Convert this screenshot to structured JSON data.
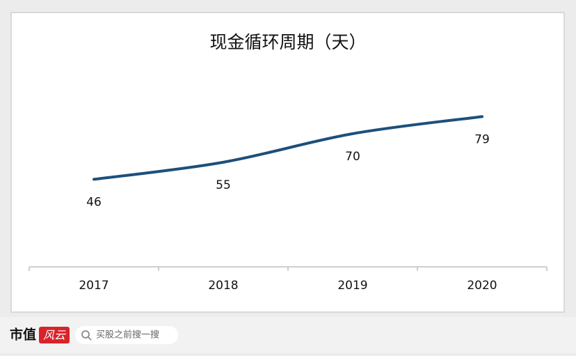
{
  "chart_data": {
    "type": "line",
    "title": "现金循环周期（天）",
    "categories": [
      "2017",
      "2018",
      "2019",
      "2020"
    ],
    "values": [
      46,
      55,
      70,
      79
    ],
    "color": "#1d4f7c",
    "ylim": [
      0,
      100
    ]
  },
  "footer": {
    "brand": "市值",
    "logo": "风云",
    "search": "买股之前搜一搜"
  }
}
